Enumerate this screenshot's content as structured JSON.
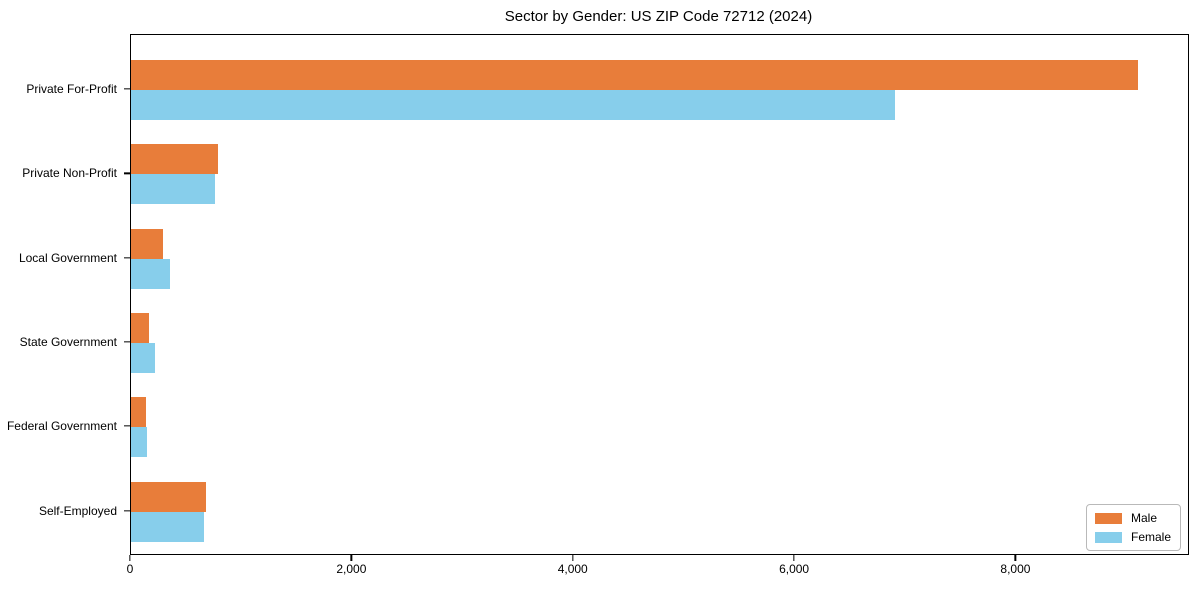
{
  "title": "Sector by Gender: US ZIP Code 72712 (2024)",
  "colors": {
    "male": "#e87d3a",
    "female": "#87ceeb",
    "axis": "#000000",
    "background": "#ffffff",
    "legend_border": "#b9b9b9"
  },
  "legend": {
    "position": "lower right",
    "items": [
      {
        "label": "Male",
        "color": "#e87d3a"
      },
      {
        "label": "Female",
        "color": "#87ceeb"
      }
    ]
  },
  "chart_data": {
    "type": "bar",
    "orientation": "horizontal",
    "title": "Sector by Gender: US ZIP Code 72712 (2024)",
    "categories": [
      "Private For-Profit",
      "Private Non-Profit",
      "Local Government",
      "State Government",
      "Federal Government",
      "Self-Employed"
    ],
    "series": [
      {
        "name": "Male",
        "color": "#e87d3a",
        "values": [
          9100,
          790,
          290,
          160,
          140,
          680
        ]
      },
      {
        "name": "Female",
        "color": "#87ceeb",
        "values": [
          6900,
          760,
          350,
          220,
          145,
          660
        ]
      }
    ],
    "xlabel": "",
    "ylabel": "",
    "xlim": [
      0,
      9550
    ],
    "x_ticks": [
      0,
      2000,
      4000,
      6000,
      8000
    ],
    "x_tick_labels": [
      "0",
      "2,000",
      "4,000",
      "6,000",
      "8,000"
    ],
    "grid": false,
    "legend_position": "lower right"
  }
}
